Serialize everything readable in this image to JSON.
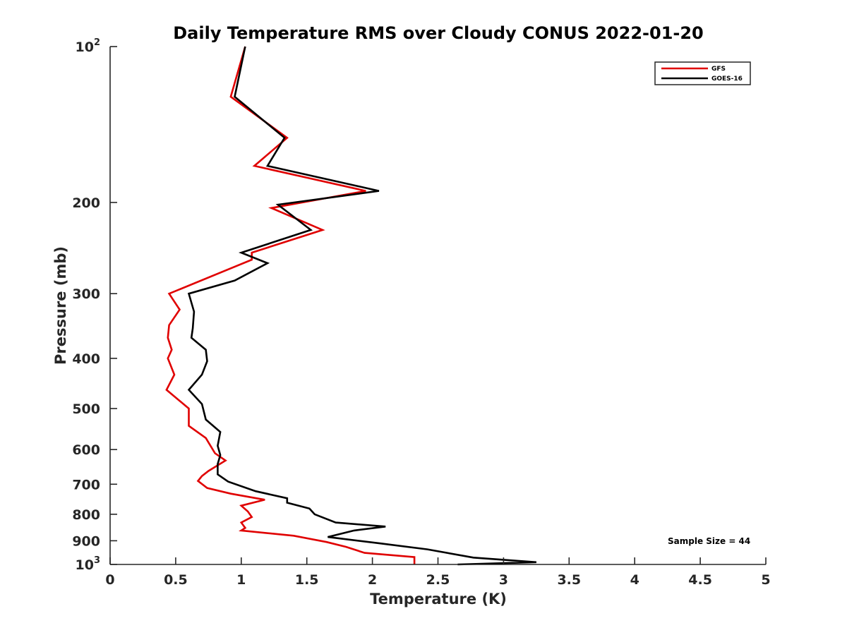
{
  "chart_data": {
    "type": "line",
    "title": "Daily Temperature RMS over Cloudy CONUS 2022-01-20",
    "xlabel": "Temperature (K)",
    "ylabel": "Pressure (mb)",
    "xlim": [
      0,
      5
    ],
    "ylim": [
      100,
      1000
    ],
    "y_scale": "log",
    "y_reversed": true,
    "grid": false,
    "legend_placement": "top-right",
    "x_ticks": [
      "0",
      "0.5",
      "1",
      "1.5",
      "2",
      "2.5",
      "3",
      "3.5",
      "4",
      "4.5",
      "5"
    ],
    "y_ticks": [
      {
        "value": 100,
        "base": "10",
        "exp": "2"
      },
      {
        "value": 200,
        "label": "200"
      },
      {
        "value": 300,
        "label": "300"
      },
      {
        "value": 400,
        "label": "400"
      },
      {
        "value": 500,
        "label": "500"
      },
      {
        "value": 600,
        "label": "600"
      },
      {
        "value": 700,
        "label": "700"
      },
      {
        "value": 800,
        "label": "800"
      },
      {
        "value": 900,
        "label": "900"
      },
      {
        "value": 1000,
        "base": "10",
        "exp": "3"
      }
    ],
    "annotation": "Sample Size = 44",
    "series": [
      {
        "name": "GFS",
        "color": "#e00000",
        "points": [
          [
            1.03,
            100
          ],
          [
            0.92,
            125
          ],
          [
            1.35,
            150
          ],
          [
            1.1,
            170
          ],
          [
            1.95,
            190
          ],
          [
            1.23,
            205
          ],
          [
            1.62,
            226
          ],
          [
            1.08,
            250
          ],
          [
            1.08,
            258
          ],
          [
            0.45,
            300
          ],
          [
            0.53,
            322
          ],
          [
            0.45,
            345
          ],
          [
            0.44,
            365
          ],
          [
            0.47,
            385
          ],
          [
            0.44,
            400
          ],
          [
            0.49,
            430
          ],
          [
            0.43,
            460
          ],
          [
            0.6,
            500
          ],
          [
            0.6,
            540
          ],
          [
            0.73,
            570
          ],
          [
            0.8,
            610
          ],
          [
            0.88,
            630
          ],
          [
            0.75,
            660
          ],
          [
            0.7,
            675
          ],
          [
            0.67,
            690
          ],
          [
            0.74,
            712
          ],
          [
            0.92,
            730
          ],
          [
            1.18,
            750
          ],
          [
            1.0,
            770
          ],
          [
            1.05,
            790
          ],
          [
            1.08,
            810
          ],
          [
            1.0,
            830
          ],
          [
            1.03,
            850
          ],
          [
            1.0,
            860
          ],
          [
            1.4,
            880
          ],
          [
            1.65,
            905
          ],
          [
            1.8,
            925
          ],
          [
            1.94,
            950
          ],
          [
            2.32,
            968
          ],
          [
            2.32,
            1000
          ]
        ]
      },
      {
        "name": "GOES-16",
        "color": "#000000",
        "points": [
          [
            1.03,
            100
          ],
          [
            0.95,
            125
          ],
          [
            1.33,
            150
          ],
          [
            1.2,
            170
          ],
          [
            2.05,
            190
          ],
          [
            1.28,
            202
          ],
          [
            1.53,
            226
          ],
          [
            1.0,
            250
          ],
          [
            1.2,
            262
          ],
          [
            0.95,
            283
          ],
          [
            0.6,
            300
          ],
          [
            0.64,
            325
          ],
          [
            0.63,
            350
          ],
          [
            0.62,
            365
          ],
          [
            0.73,
            385
          ],
          [
            0.74,
            405
          ],
          [
            0.7,
            430
          ],
          [
            0.6,
            460
          ],
          [
            0.7,
            490
          ],
          [
            0.73,
            525
          ],
          [
            0.84,
            555
          ],
          [
            0.82,
            590
          ],
          [
            0.84,
            615
          ],
          [
            0.82,
            640
          ],
          [
            0.82,
            670
          ],
          [
            0.9,
            692
          ],
          [
            1.11,
            722
          ],
          [
            1.35,
            745
          ],
          [
            1.35,
            760
          ],
          [
            1.52,
            780
          ],
          [
            1.56,
            800
          ],
          [
            1.72,
            830
          ],
          [
            2.1,
            845
          ],
          [
            1.86,
            860
          ],
          [
            1.66,
            885
          ],
          [
            2.05,
            910
          ],
          [
            2.42,
            935
          ],
          [
            2.77,
            970
          ],
          [
            3.25,
            990
          ],
          [
            2.65,
            1000
          ]
        ]
      }
    ]
  }
}
